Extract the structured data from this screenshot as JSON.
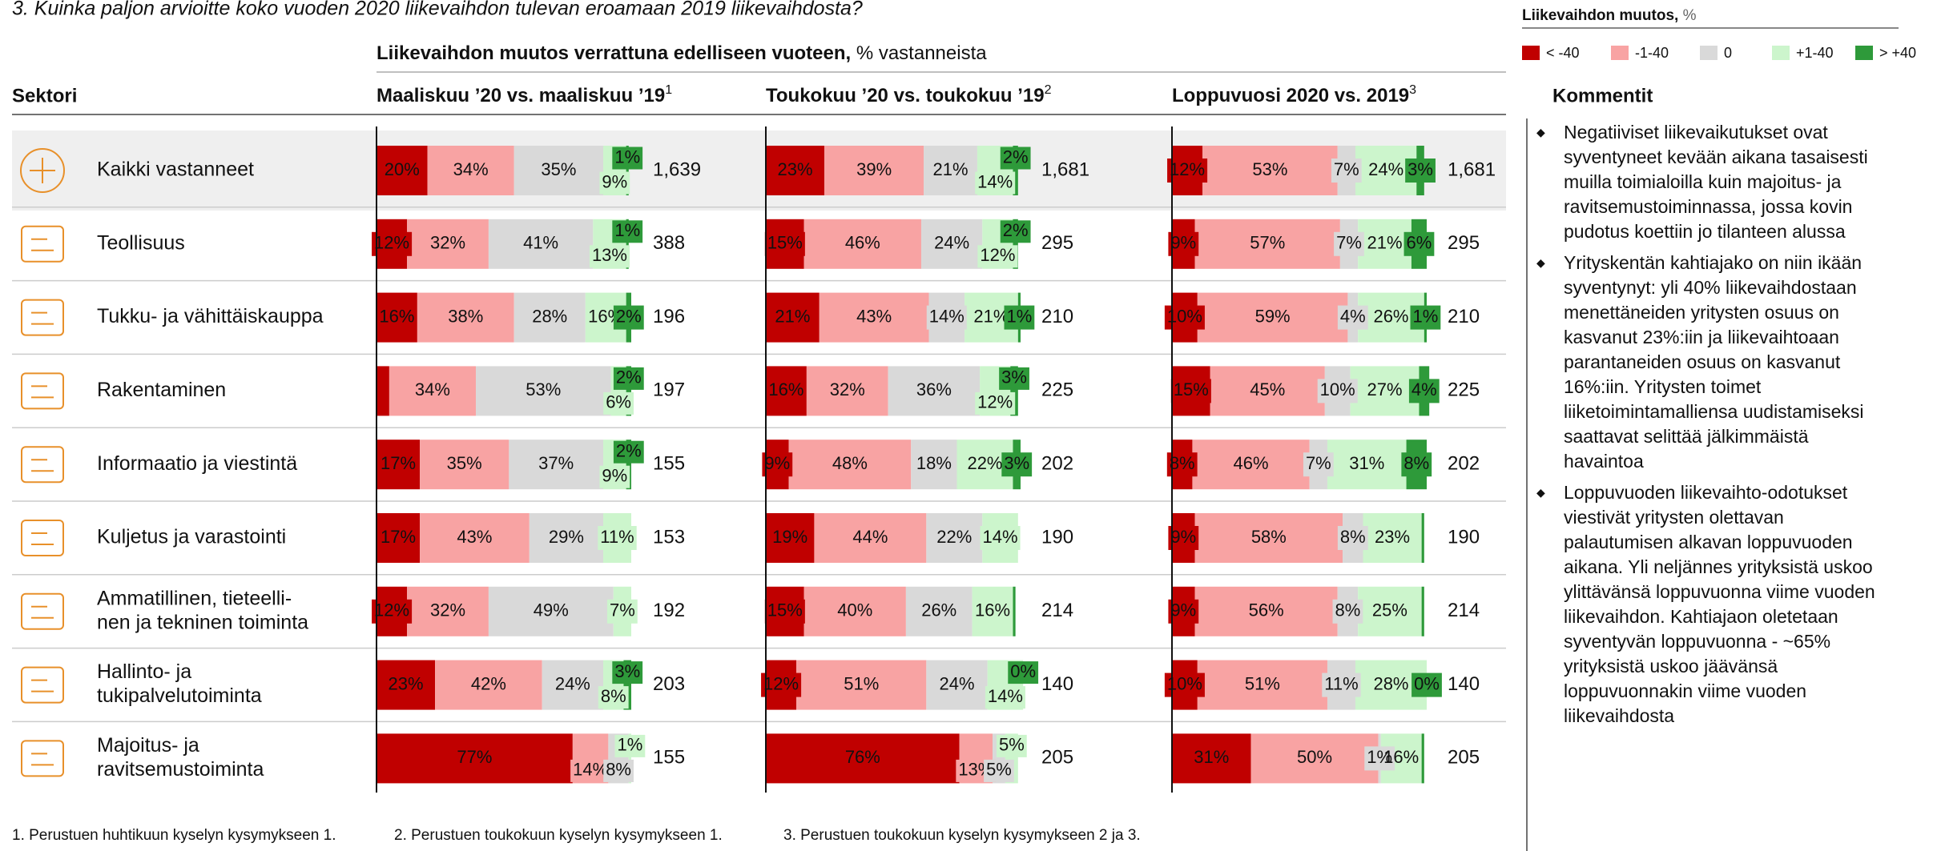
{
  "chart_data": {
    "type": "stacked_bar",
    "title": "3. Kuinka paljon arvioitte koko vuoden 2020 liikevaihdon tulevan eroamaan 2019 liikevaihdosta?",
    "subtitle_bold": "Liikevaihdon muutos verrattuna edelliseen vuoteen,",
    "subtitle_rest": " % vastanneista",
    "legend_title_bold": "Liikevaihdon muutos,",
    "legend_title_rest": " %",
    "legend": [
      {
        "name": "< -40",
        "color": "#c00000"
      },
      {
        "name": "-1-40",
        "color": "#f8a3a3"
      },
      {
        "name": "0",
        "color": "#d9d9d9"
      },
      {
        "name": "+1-40",
        "color": "#ccf5cc"
      },
      {
        "name": ">  +40",
        "color": "#2e9a3a"
      }
    ],
    "category_header": "Sektori",
    "categories": [
      [
        "Kaikki vastanneet"
      ],
      [
        "Teollisuus"
      ],
      [
        "Tukku- ja vähittäiskauppa"
      ],
      [
        "Rakentaminen"
      ],
      [
        "Informaatio ja viestintä"
      ],
      [
        "Kuljetus ja varastointi"
      ],
      [
        "Ammatillinen, tieteelli-",
        "nen ja tekninen toiminta"
      ],
      [
        "Hallinto- ja",
        "tukipalvelutoiminta"
      ],
      [
        "Majoitus- ja",
        "ravitsemustoiminta"
      ]
    ],
    "panels": [
      {
        "title": "Maaliskuu ’20 vs. maaliskuu ’19",
        "note": "1",
        "series": [
          {
            "values": [
              20,
              12,
              16,
              5,
              17,
              17,
              12,
              23,
              77
            ],
            "value_labels": [
              "20%",
              "12%",
              "16%",
              null,
              "17%",
              "17%",
              "12%",
              "23%",
              "77%"
            ]
          },
          {
            "values": [
              34,
              32,
              38,
              34,
              35,
              43,
              32,
              42,
              14
            ],
            "value_labels": [
              "34%",
              "32%",
              "38%",
              "34%",
              "35%",
              "43%",
              "32%",
              "42%",
              "14%"
            ]
          },
          {
            "values": [
              35,
              41,
              28,
              53,
              37,
              29,
              49,
              24,
              8
            ],
            "value_labels": [
              "35%",
              "41%",
              "28%",
              "53%",
              "37%",
              "29%",
              "49%",
              "24%",
              "8%"
            ]
          },
          {
            "values": [
              9,
              13,
              16,
              6,
              9,
              11,
              7,
              8,
              1
            ],
            "value_labels": [
              "9%",
              "13%",
              "16%",
              "6%",
              "9%",
              "11%",
              "7%",
              "8%",
              "1%"
            ]
          },
          {
            "values": [
              1,
              1,
              2,
              2,
              2,
              0,
              0,
              3,
              0
            ],
            "value_labels": [
              "1%",
              "1%",
              "2%",
              "2%",
              "2%",
              null,
              null,
              "3%",
              null
            ]
          }
        ],
        "n": [
          1639,
          388,
          196,
          197,
          155,
          153,
          192,
          203,
          155
        ],
        "n_labels": [
          "1,639",
          "388",
          "196",
          "197",
          "155",
          "153",
          "192",
          "203",
          "155"
        ]
      },
      {
        "title": "Toukokuu ’20 vs. toukokuu ’19",
        "note": "2",
        "series": [
          {
            "values": [
              23,
              15,
              21,
              16,
              9,
              19,
              15,
              12,
              76
            ],
            "value_labels": [
              "23%",
              "15%",
              "21%",
              "16%",
              "9%",
              "19%",
              "15%",
              "12%",
              "76%"
            ]
          },
          {
            "values": [
              39,
              46,
              43,
              32,
              48,
              44,
              40,
              51,
              13
            ],
            "value_labels": [
              "39%",
              "46%",
              "43%",
              "32%",
              "48%",
              "44%",
              "40%",
              "51%",
              "13%"
            ]
          },
          {
            "values": [
              21,
              24,
              14,
              36,
              18,
              22,
              26,
              24,
              5
            ],
            "value_labels": [
              "21%",
              "24%",
              "14%",
              "36%",
              "18%",
              "22%",
              "26%",
              "24%",
              "5%"
            ]
          },
          {
            "values": [
              14,
              12,
              21,
              12,
              22,
              14,
              16,
              14,
              5
            ],
            "value_labels": [
              "14%",
              "12%",
              "21%",
              "12%",
              "22%",
              "14%",
              "16%",
              "14%",
              "5%"
            ]
          },
          {
            "values": [
              2,
              2,
              1,
              3,
              3,
              0,
              1,
              0,
              0
            ],
            "value_labels": [
              "2%",
              "2%",
              "1%",
              "3%",
              "3%",
              null,
              null,
              "0%",
              null
            ]
          }
        ],
        "n": [
          1681,
          295,
          210,
          225,
          202,
          190,
          214,
          140,
          205
        ],
        "n_labels": [
          "1,681",
          "295",
          "210",
          "225",
          "202",
          "190",
          "214",
          "140",
          "205"
        ]
      },
      {
        "title": "Loppuvuosi 2020 vs. 2019",
        "note": "3",
        "series": [
          {
            "values": [
              12,
              9,
              10,
              15,
              8,
              9,
              9,
              10,
              31
            ],
            "value_labels": [
              "12%",
              "9%",
              "10%",
              "15%",
              "8%",
              "9%",
              "9%",
              "10%",
              "31%"
            ]
          },
          {
            "values": [
              53,
              57,
              59,
              45,
              46,
              58,
              56,
              51,
              50
            ],
            "value_labels": [
              "53%",
              "57%",
              "59%",
              "45%",
              "46%",
              "58%",
              "56%",
              "51%",
              "50%"
            ]
          },
          {
            "values": [
              7,
              7,
              4,
              10,
              7,
              8,
              8,
              11,
              1
            ],
            "value_labels": [
              "7%",
              "7%",
              "4%",
              "10%",
              "7%",
              "8%",
              "8%",
              "11%",
              "1%"
            ]
          },
          {
            "values": [
              24,
              21,
              26,
              27,
              31,
              23,
              25,
              28,
              16
            ],
            "value_labels": [
              "24%",
              "21%",
              "26%",
              "27%",
              "31%",
              "23%",
              "25%",
              "28%",
              "16%"
            ]
          },
          {
            "values": [
              3,
              6,
              1,
              4,
              8,
              1,
              1,
              0,
              1
            ],
            "value_labels": [
              "3%",
              "6%",
              "1%",
              "4%",
              "8%",
              null,
              null,
              "0%",
              null
            ]
          }
        ],
        "n": [
          1681,
          295,
          210,
          225,
          202,
          190,
          214,
          140,
          205
        ],
        "n_labels": [
          "1,681",
          "295",
          "210",
          "225",
          "202",
          "190",
          "214",
          "140",
          "205"
        ]
      }
    ],
    "xlim": [
      0,
      100
    ],
    "comment_header": "Kommentit",
    "comments": [
      "Negatiiviset liikevaikutukset ovat syventyneet kevään aikana tasaisesti muilla toimialoilla kuin majoitus- ja ravitsemustoiminnassa, jossa kovin pudotus koettiin jo tilanteen alussa",
      "Yrityskentän kahtiajako on niin ikään syventynyt: yli 40% liikevaihdostaan menettäneiden yritysten osuus on kasvanut 23%:iin ja liikevaihtoaan parantaneiden osuus on kasvanut 16%:iin. Yritysten toimet liiketoimintamalliensa uudistamiseksi saattavat selittää jälkimmäistä havaintoa",
      "Loppuvuoden liikevaihto-odotukset viestivät yritysten olettavan palautumisen alkavan loppuvuoden aikana. Yli neljännes yrityksistä uskoo ylittävänsä loppuvuonna viime vuoden liikevaihdon. Kahtiajaon oletetaan syventyvän loppuvuonna - ~65% yrityksistä uskoo jäävänsä loppuvuonnakin viime vuoden liikevaihdosta"
    ],
    "footnotes": [
      "1. Perustuen huhtikuun kyselyn kysymykseen 1.",
      "2. Perustuen toukokuun kyselyn kysymykseen 1.",
      "3. Perustuen toukokuun kyselyn kysymykseen 2 ja 3."
    ]
  }
}
